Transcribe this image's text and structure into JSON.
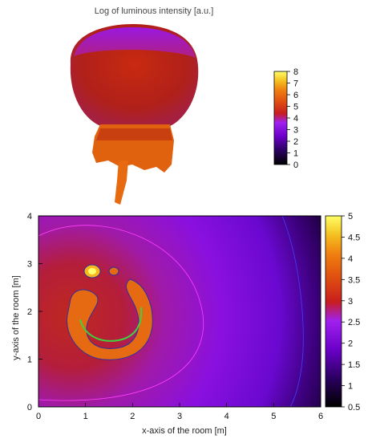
{
  "chart_data": [
    {
      "type": "surface3d",
      "title": "Log of luminous intensity [a.u.]",
      "colorbar": {
        "range": [
          0,
          8
        ],
        "ticks": [
          "0",
          "1",
          "2",
          "3",
          "4",
          "5",
          "6",
          "7",
          "8"
        ],
        "palette": [
          "#000000",
          "#2a0060",
          "#6a00c8",
          "#a020f0",
          "#c81e1e",
          "#e05010",
          "#f07f10",
          "#f5c020",
          "#ffff66"
        ]
      }
    },
    {
      "type": "heatmap",
      "title": "",
      "xlabel": "x-axis of the room [m]",
      "ylabel": "y-axis of the room [m]",
      "xlim": [
        0,
        6
      ],
      "ylim": [
        0,
        4
      ],
      "xticks": [
        "0",
        "1",
        "2",
        "3",
        "4",
        "5",
        "6"
      ],
      "yticks": [
        "0",
        "1",
        "2",
        "3",
        "4"
      ],
      "colorbar": {
        "range": [
          0.5,
          5
        ],
        "ticks": [
          "0.5",
          "1",
          "1.5",
          "2",
          "2.5",
          "3",
          "3.5",
          "4",
          "4.5",
          "5"
        ],
        "palette": [
          "#000000",
          "#2a0060",
          "#6a00c8",
          "#a020f0",
          "#c81e1e",
          "#e05010",
          "#f07f10",
          "#f5c020",
          "#ffff66"
        ]
      },
      "features": {
        "bright_ring_center": [
          1.5,
          1.95
        ],
        "bright_ring_radius": 0.8,
        "hot_spot": [
          1.1,
          2.95
        ],
        "dark_corner": "top-right"
      }
    }
  ]
}
